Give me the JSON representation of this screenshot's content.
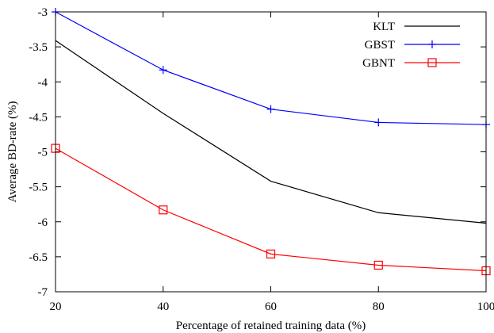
{
  "chart_data": {
    "type": "line",
    "title": "",
    "xlabel": "Percentage of retained training data (%)",
    "ylabel": "Average BD-rate (%)",
    "x": [
      20,
      40,
      60,
      80,
      100
    ],
    "xlim": [
      20,
      100
    ],
    "ylim": [
      -7,
      -3
    ],
    "xticks": [
      20,
      40,
      60,
      80,
      100
    ],
    "yticks": [
      -3,
      -3.5,
      -4,
      -4.5,
      -5,
      -5.5,
      -6,
      -6.5,
      -7
    ],
    "xtick_labels": [
      "20",
      "40",
      "60",
      "80",
      "100"
    ],
    "ytick_labels": [
      "-3",
      "-3.5",
      "-4",
      "-4.5",
      "-5",
      "-5.5",
      "-6",
      "-6.5",
      "-7"
    ],
    "grid": false,
    "legend_position": "top-right",
    "series": [
      {
        "name": "KLT",
        "values": [
          -3.41,
          -4.45,
          -5.42,
          -5.87,
          -6.02
        ],
        "color": "#000000",
        "marker": "none"
      },
      {
        "name": "GBST",
        "values": [
          -3.0,
          -3.83,
          -4.39,
          -4.58,
          -4.61
        ],
        "color": "#0000ff",
        "marker": "plus"
      },
      {
        "name": "GBNT",
        "values": [
          -4.95,
          -5.83,
          -6.46,
          -6.62,
          -6.7
        ],
        "color": "#ff0000",
        "marker": "square"
      }
    ]
  }
}
